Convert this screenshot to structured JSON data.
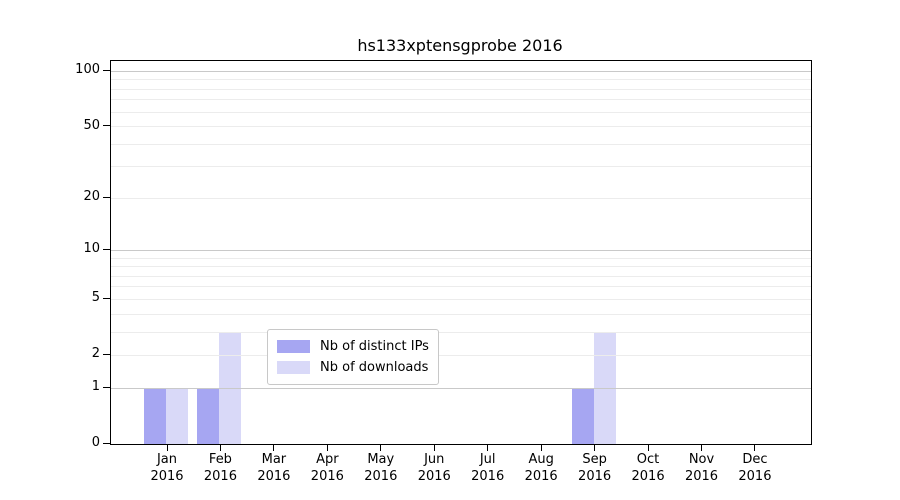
{
  "chart_data": {
    "type": "bar",
    "title": "hs133xptensgprobe 2016",
    "scale": "log1p",
    "grid": "horizontal",
    "categories": [
      "Jan",
      "Feb",
      "Mar",
      "Apr",
      "May",
      "Jun",
      "Jul",
      "Aug",
      "Sep",
      "Oct",
      "Nov",
      "Dec"
    ],
    "x_year_label": "2016",
    "series": [
      {
        "name": "Nb of distinct IPs",
        "color": "#a6a6f2",
        "values": [
          1,
          1,
          0,
          0,
          0,
          0,
          0,
          0,
          1,
          0,
          0,
          0
        ]
      },
      {
        "name": "Nb of downloads",
        "color": "#d9d9f8",
        "values": [
          1,
          3,
          0,
          0,
          0,
          0,
          0,
          0,
          3,
          0,
          0,
          0
        ]
      }
    ],
    "yticks": [
      0,
      1,
      2,
      5,
      10,
      20,
      50,
      100
    ],
    "ylim": [
      0,
      114
    ],
    "major_gridlines": [
      1,
      10,
      100
    ],
    "minor_gridlines": [
      2,
      3,
      4,
      5,
      6,
      7,
      8,
      9,
      20,
      30,
      40,
      50,
      60,
      70,
      80,
      90
    ],
    "legend_position": "lower center",
    "colors": {
      "axis": "#000000",
      "grid_major": "#c9c9c9",
      "grid_minor": "#ececec",
      "legend_border": "#c8c8c8",
      "background": "#ffffff"
    }
  }
}
